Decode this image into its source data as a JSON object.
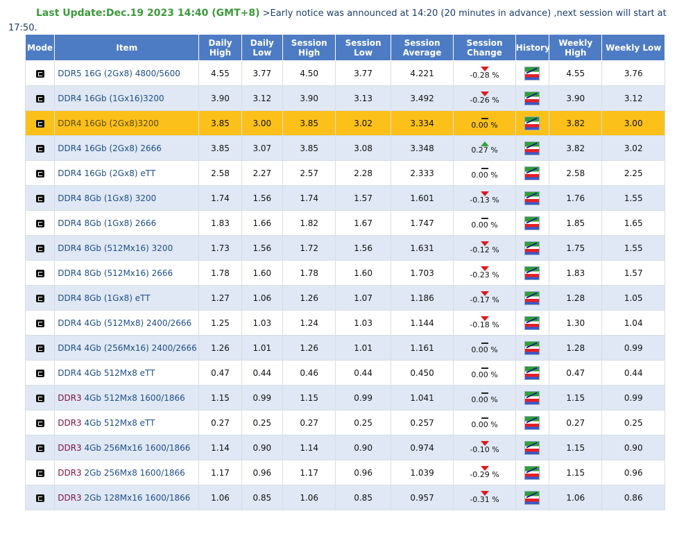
{
  "notice": {
    "last_update": "Last Update:Dec.19 2023 14:40 (GMT+8)",
    "message": " >Early notice was announced at 14:20 (20 minutes in advance) ,next session will start at 17:50."
  },
  "headers": {
    "mode": "Mode",
    "item": "Item",
    "daily_high": "Daily High",
    "daily_low": "Daily Low",
    "session_high": "Session High",
    "session_low": "Session Low",
    "session_average": "Session Average",
    "session_change": "Session Change",
    "history": "History",
    "weekly_high": "Weekly High",
    "weekly_low": "Weekly Low"
  },
  "icons": {
    "mode": "mode-icon",
    "history": "history-chart-icon",
    "down": "arrow-down-icon",
    "up": "arrow-up-icon",
    "flat": "no-change-icon"
  },
  "colors": {
    "header_bg": "#4d7cc4",
    "highlight_row": "#fcc01a",
    "down": "#e0191f",
    "up": "#2fa33a",
    "ddr3_prefix": "#7a1040"
  },
  "rows": [
    {
      "prefix": "",
      "item": "DDR5 16G (2Gx8) 4800/5600",
      "dh": "4.55",
      "dl": "3.77",
      "sh": "4.50",
      "sl": "3.77",
      "avg": "4.221",
      "dir": "down",
      "chg": "-0.28 %",
      "wh": "4.55",
      "wl": "3.76"
    },
    {
      "prefix": "",
      "item": "DDR4 16Gb (1Gx16)3200",
      "dh": "3.90",
      "dl": "3.12",
      "sh": "3.90",
      "sl": "3.13",
      "avg": "3.492",
      "dir": "down",
      "chg": "-0.26 %",
      "wh": "3.90",
      "wl": "3.12"
    },
    {
      "prefix": "",
      "item": "DDR4 16Gb (2Gx8)3200",
      "dh": "3.85",
      "dl": "3.00",
      "sh": "3.85",
      "sl": "3.02",
      "avg": "3.334",
      "dir": "flat",
      "chg": "0.00 %",
      "wh": "3.82",
      "wl": "3.00",
      "highlight": true
    },
    {
      "prefix": "",
      "item": "DDR4 16Gb (2Gx8) 2666",
      "dh": "3.85",
      "dl": "3.07",
      "sh": "3.85",
      "sl": "3.08",
      "avg": "3.348",
      "dir": "up",
      "chg": "0.27 %",
      "wh": "3.82",
      "wl": "3.02"
    },
    {
      "prefix": "",
      "item": "DDR4 16Gb (2Gx8) eTT",
      "dh": "2.58",
      "dl": "2.27",
      "sh": "2.57",
      "sl": "2.28",
      "avg": "2.333",
      "dir": "flat",
      "chg": "0.00 %",
      "wh": "2.58",
      "wl": "2.25"
    },
    {
      "prefix": "",
      "item": "DDR4 8Gb (1Gx8) 3200",
      "dh": "1.74",
      "dl": "1.56",
      "sh": "1.74",
      "sl": "1.57",
      "avg": "1.601",
      "dir": "down",
      "chg": "-0.13 %",
      "wh": "1.76",
      "wl": "1.55"
    },
    {
      "prefix": "",
      "item": "DDR4 8Gb (1Gx8) 2666",
      "dh": "1.83",
      "dl": "1.66",
      "sh": "1.82",
      "sl": "1.67",
      "avg": "1.747",
      "dir": "flat",
      "chg": "0.00 %",
      "wh": "1.85",
      "wl": "1.65"
    },
    {
      "prefix": "",
      "item": "DDR4 8Gb (512Mx16) 3200",
      "dh": "1.73",
      "dl": "1.56",
      "sh": "1.72",
      "sl": "1.56",
      "avg": "1.631",
      "dir": "down",
      "chg": "-0.12 %",
      "wh": "1.75",
      "wl": "1.55"
    },
    {
      "prefix": "",
      "item": "DDR4 8Gb (512Mx16) 2666",
      "dh": "1.78",
      "dl": "1.60",
      "sh": "1.78",
      "sl": "1.60",
      "avg": "1.703",
      "dir": "down",
      "chg": "-0.23 %",
      "wh": "1.83",
      "wl": "1.57"
    },
    {
      "prefix": "",
      "item": "DDR4 8Gb (1Gx8) eTT",
      "dh": "1.27",
      "dl": "1.06",
      "sh": "1.26",
      "sl": "1.07",
      "avg": "1.186",
      "dir": "down",
      "chg": "-0.17 %",
      "wh": "1.28",
      "wl": "1.05"
    },
    {
      "prefix": "",
      "item": "DDR4 4Gb (512Mx8) 2400/2666",
      "dh": "1.25",
      "dl": "1.03",
      "sh": "1.24",
      "sl": "1.03",
      "avg": "1.144",
      "dir": "down",
      "chg": "-0.18 %",
      "wh": "1.30",
      "wl": "1.04"
    },
    {
      "prefix": "",
      "item": "DDR4 4Gb (256Mx16) 2400/2666",
      "dh": "1.26",
      "dl": "1.01",
      "sh": "1.26",
      "sl": "1.01",
      "avg": "1.161",
      "dir": "flat",
      "chg": "0.00 %",
      "wh": "1.28",
      "wl": "0.99"
    },
    {
      "prefix": "",
      "item": "DDR4 4Gb 512Mx8 eTT",
      "dh": "0.47",
      "dl": "0.44",
      "sh": "0.46",
      "sl": "0.44",
      "avg": "0.450",
      "dir": "flat",
      "chg": "0.00 %",
      "wh": "0.47",
      "wl": "0.44"
    },
    {
      "prefix": "DDR3",
      "item": " 4Gb 512Mx8 1600/1866",
      "dh": "1.15",
      "dl": "0.99",
      "sh": "1.15",
      "sl": "0.99",
      "avg": "1.041",
      "dir": "flat",
      "chg": "0.00 %",
      "wh": "1.15",
      "wl": "0.99"
    },
    {
      "prefix": "DDR3",
      "item": " 4Gb 512Mx8 eTT",
      "dh": "0.27",
      "dl": "0.25",
      "sh": "0.27",
      "sl": "0.25",
      "avg": "0.257",
      "dir": "flat",
      "chg": "0.00 %",
      "wh": "0.27",
      "wl": "0.25"
    },
    {
      "prefix": "DDR3",
      "item": " 4Gb 256Mx16 1600/1866",
      "dh": "1.14",
      "dl": "0.90",
      "sh": "1.14",
      "sl": "0.90",
      "avg": "0.974",
      "dir": "down",
      "chg": "-0.10 %",
      "wh": "1.15",
      "wl": "0.90"
    },
    {
      "prefix": "DDR3",
      "item": " 2Gb 256Mx8 1600/1866",
      "dh": "1.17",
      "dl": "0.96",
      "sh": "1.17",
      "sl": "0.96",
      "avg": "1.039",
      "dir": "down",
      "chg": "-0.29 %",
      "wh": "1.15",
      "wl": "0.96"
    },
    {
      "prefix": "DDR3",
      "item": " 2Gb 128Mx16 1600/1866",
      "dh": "1.06",
      "dl": "0.85",
      "sh": "1.06",
      "sl": "0.85",
      "avg": "0.957",
      "dir": "down",
      "chg": "-0.31 %",
      "wh": "1.06",
      "wl": "0.86"
    }
  ]
}
